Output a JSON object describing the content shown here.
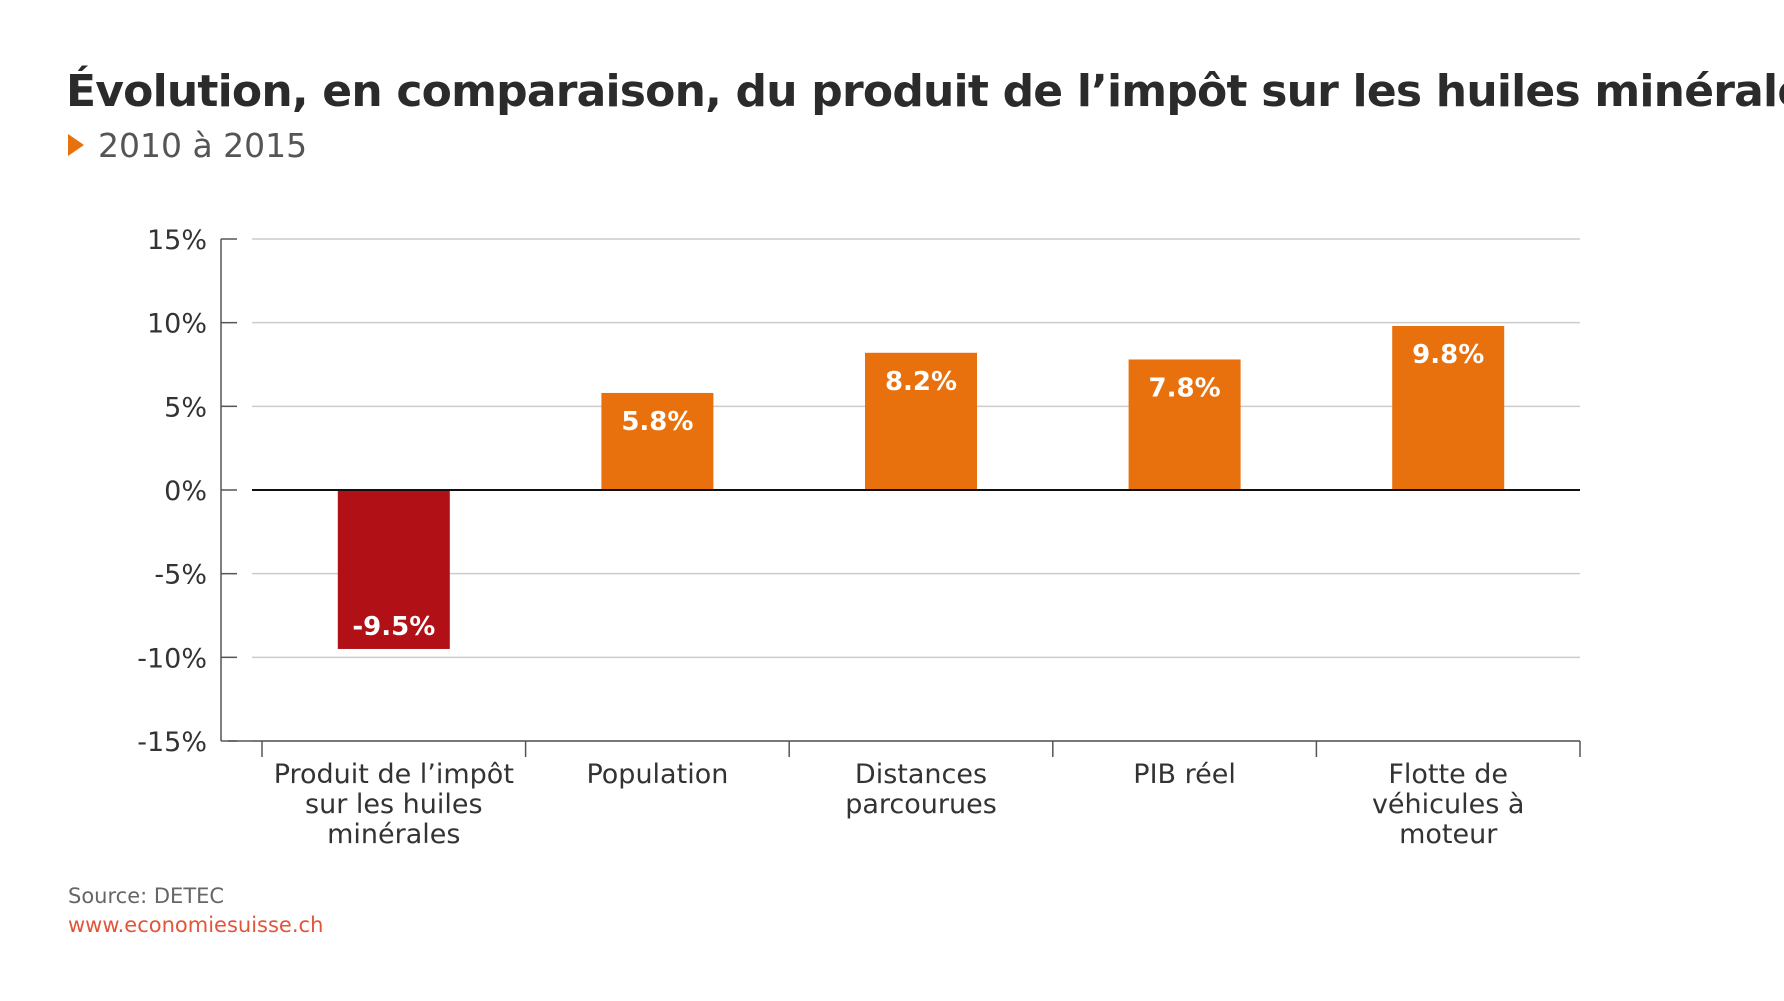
{
  "header": {
    "title": "Évolution, en comparaison, du produit de l’impôt sur les huiles minérales",
    "subtitle": "2010 à 2015"
  },
  "footer": {
    "source": "Source: DETEC",
    "website": "www.economiesuisse.ch"
  },
  "colors": {
    "positive": "#e8700d",
    "negative": "#b01016",
    "grid": "#cccccc",
    "axis": "#555555",
    "zero_line": "#111111",
    "bar_label": "#ffffff",
    "marker": "#e8700d",
    "link": "#e2553a"
  },
  "chart_data": {
    "type": "bar",
    "title": "Évolution, en comparaison, du produit de l’impôt sur les huiles minérales",
    "subtitle": "2010 à 2015",
    "categories": [
      [
        "Produit de l’impôt",
        "sur les huiles",
        "minérales"
      ],
      [
        "Population"
      ],
      [
        "Distances",
        "parcourues"
      ],
      [
        "PIB réel"
      ],
      [
        "Flotte de",
        "véhicules à",
        "moteur"
      ]
    ],
    "values": [
      -9.5,
      5.8,
      8.2,
      7.8,
      9.8
    ],
    "value_labels": [
      "-9.5%",
      "5.8%",
      "8.2%",
      "7.8%",
      "9.8%"
    ],
    "ylim": [
      -15,
      15
    ],
    "yticks": [
      15,
      10,
      5,
      0,
      -5,
      -10,
      -15
    ],
    "ytick_labels": [
      "15%",
      "10%",
      "5%",
      "0%",
      "-5%",
      "-10%",
      "-15%"
    ],
    "grid": true,
    "xlabel": "",
    "ylabel": ""
  }
}
